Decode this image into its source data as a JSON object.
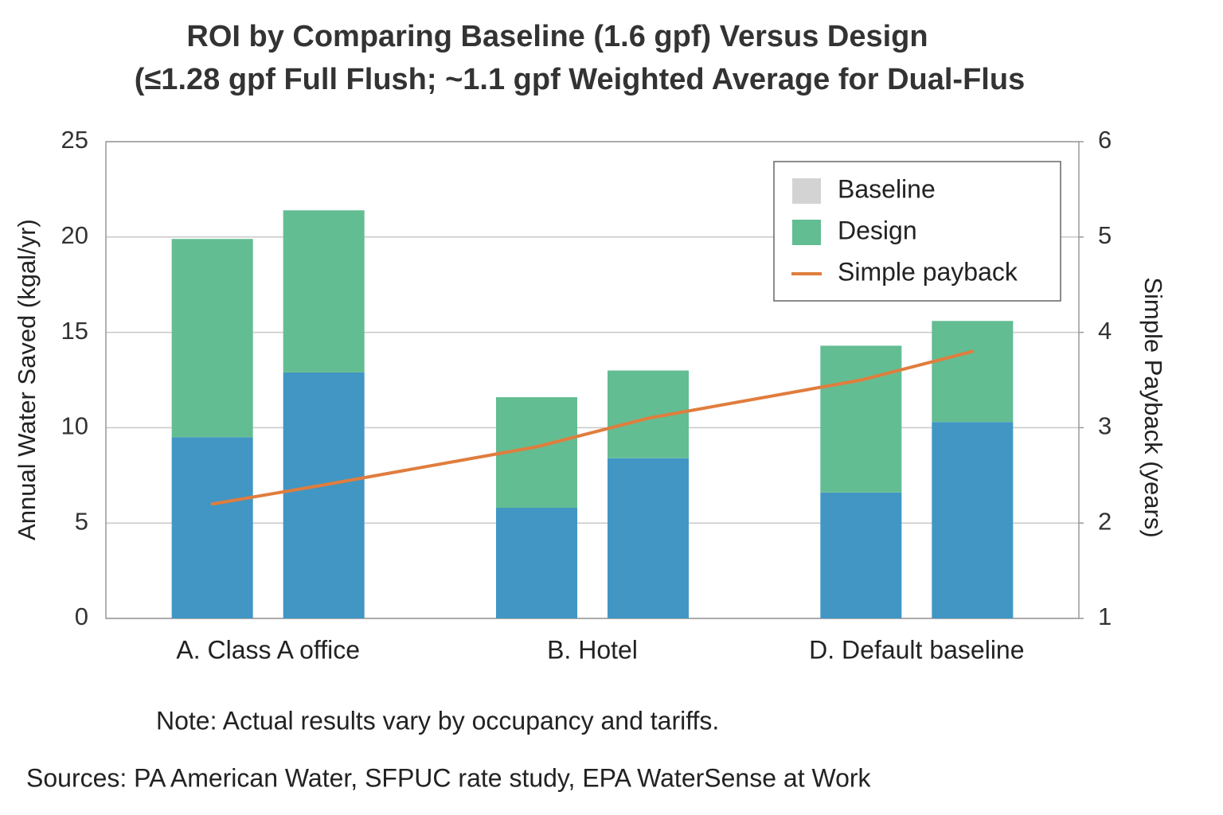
{
  "chart_data": {
    "type": "bar",
    "title": [
      "ROI by Comparing Baseline (1.6 gpf) Versus Design",
      "(≤1.28 gpf Full Flush; ~1.1 gpf Weighted Average for Dual-Flus"
    ],
    "categories": [
      "A. Class A office",
      null,
      "B. Hotel",
      null,
      "D. Default baseline",
      null
    ],
    "series": [
      {
        "name": "Baseline",
        "color": "#4196c4",
        "legend_color": "#d3d3d3",
        "stacked": true,
        "values": [
          9.5,
          12.9,
          5.8,
          8.4,
          6.6,
          10.3
        ]
      },
      {
        "name": "Design",
        "color": "#63bd92",
        "stacked": true,
        "values": [
          10.4,
          8.5,
          5.8,
          4.6,
          7.7,
          5.3
        ]
      },
      {
        "name": "Simple payback",
        "color": "#e07d3e",
        "type": "line",
        "axis": "y2",
        "values": [
          2.2,
          2.4,
          2.8,
          3.1,
          3.5,
          3.8
        ]
      }
    ],
    "ylabel": "Annual Water Saved (kgal/yr)",
    "y2label": "Simple Payback (years)",
    "ylim": [
      0,
      25
    ],
    "yticks": [
      0,
      5,
      10,
      15,
      20,
      25
    ],
    "y2lim": [
      1,
      6
    ],
    "y2ticks": [
      1,
      2,
      3,
      4,
      5,
      6
    ],
    "grid": true,
    "legend": "upper right",
    "annotations": [
      "Note: Actual results vary by occupancy and tariffs.",
      "Sources: PA American Water, SFPUC rate study, EPA WaterSense at Work"
    ]
  }
}
